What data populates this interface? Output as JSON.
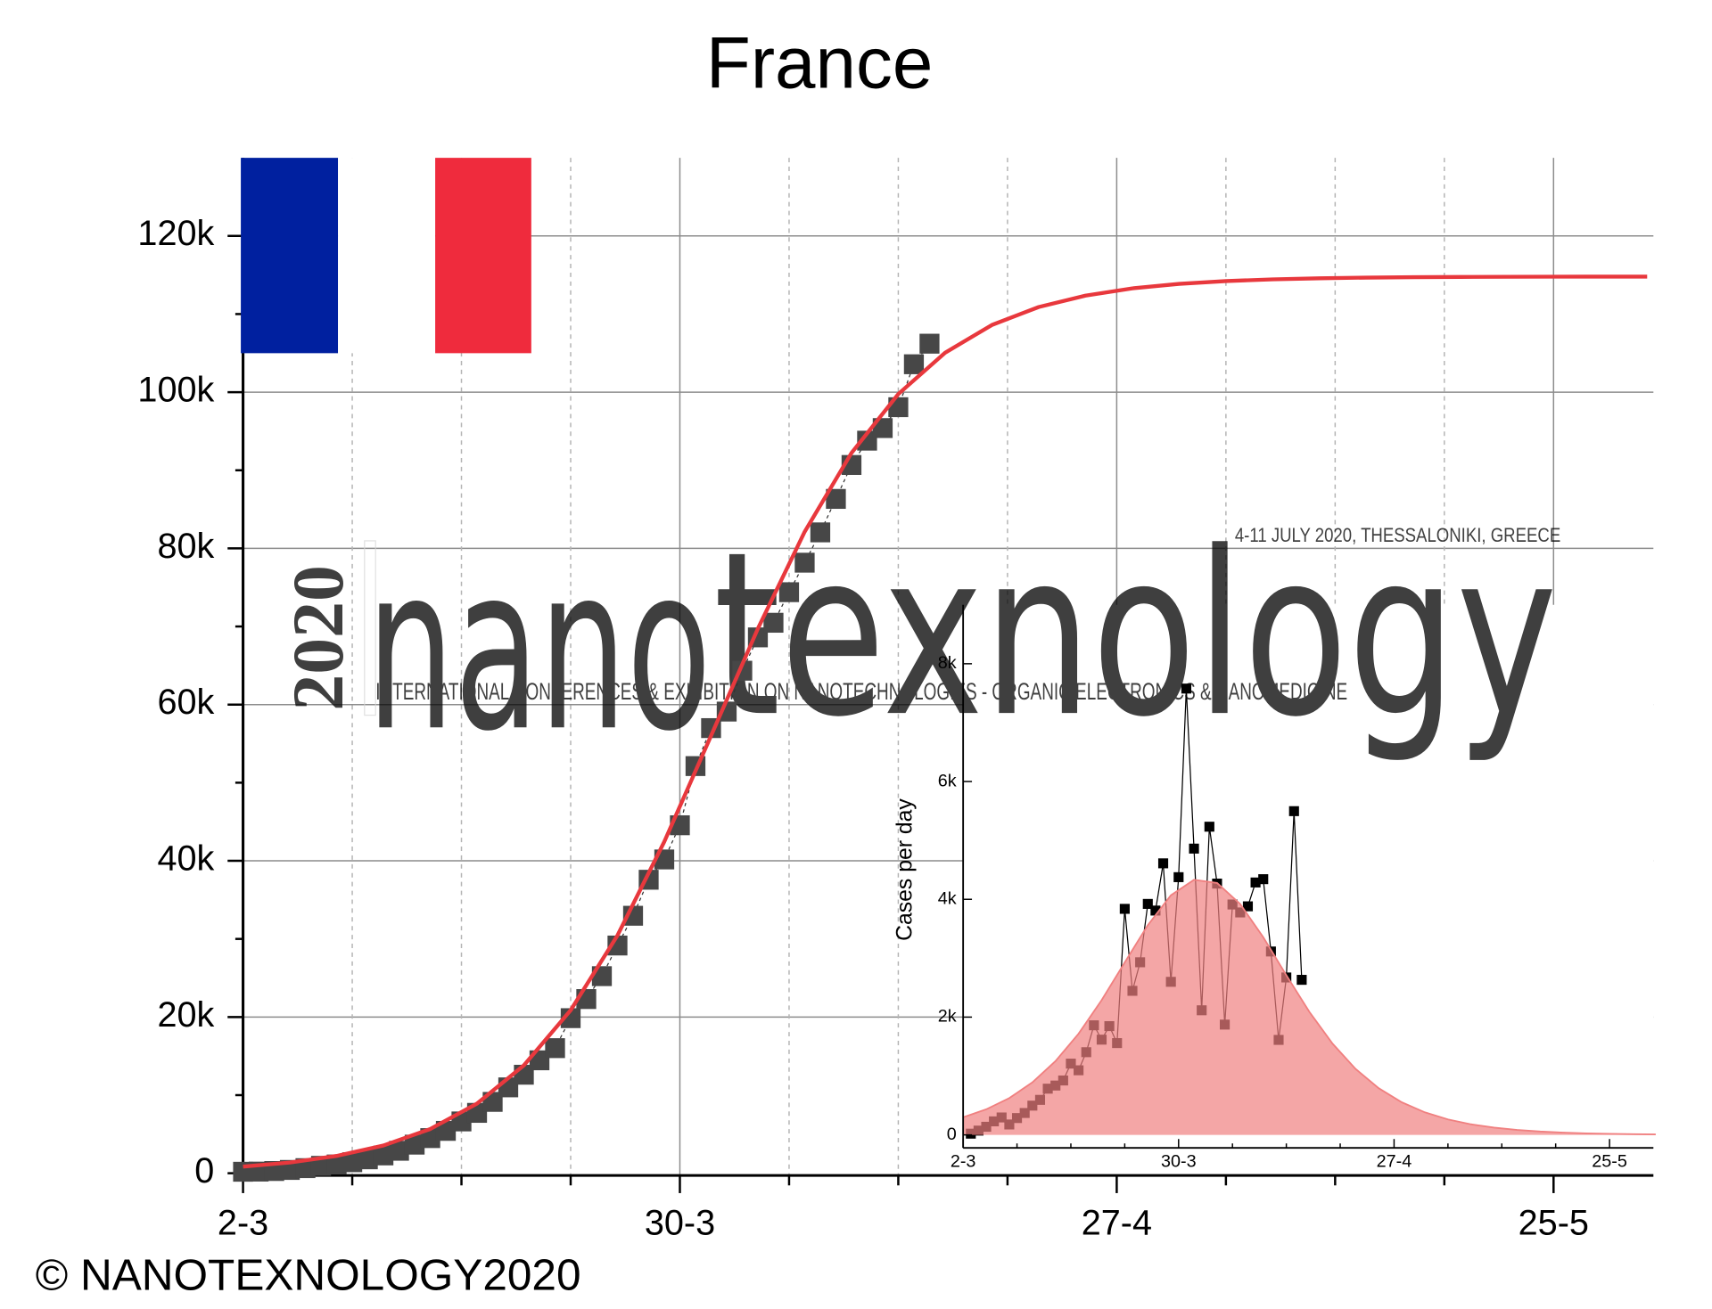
{
  "chart_data": [
    {
      "type": "scatter",
      "title": "France",
      "xlim": [
        0,
        90.4
      ],
      "xticks": [
        {
          "value": 0,
          "label": "2-3"
        },
        {
          "value": 28,
          "label": "30-3"
        },
        {
          "value": 56,
          "label": "27-4"
        },
        {
          "value": 84,
          "label": "25-5"
        }
      ],
      "xminorticks": [
        7,
        14,
        21,
        35,
        42,
        49,
        63,
        70,
        77
      ],
      "ylim": [
        0,
        130000
      ],
      "yticks": [
        0,
        {
          "value": 20000,
          "label": "20k"
        },
        {
          "value": 40000,
          "label": "40k"
        },
        {
          "value": 60000,
          "label": "60k"
        },
        {
          "value": 80000,
          "label": "80k"
        },
        {
          "value": 100000,
          "label": "100k"
        },
        {
          "value": 120000,
          "label": "120k"
        }
      ],
      "yminorticks": [
        10000,
        30000,
        50000,
        70000,
        90000,
        110000
      ],
      "grid": true,
      "series": [
        {
          "type": "scatter",
          "color": "#474747",
          "x": [
            0,
            1,
            2,
            3,
            4,
            5,
            6,
            7,
            8,
            9,
            10,
            11,
            12,
            13,
            14,
            15,
            16,
            17,
            18,
            19,
            20,
            21,
            22,
            23,
            24,
            25,
            26,
            27,
            28,
            29,
            30,
            31,
            32,
            33,
            34,
            35,
            36,
            37,
            38,
            39,
            40,
            41,
            42,
            43,
            44
          ],
          "values": [
            191,
            212,
            285,
            423,
            653,
            949,
            1126,
            1412,
            1784,
            2281,
            2876,
            3661,
            4499,
            5423,
            6633,
            7730,
            9134,
            10995,
            12612,
            14459,
            16018,
            19856,
            22302,
            25233,
            29155,
            32964,
            37575,
            40174,
            44550,
            52128,
            56989,
            59105,
            64338,
            68605,
            70478,
            74390,
            78167,
            82048,
            86334,
            90676,
            93790,
            95403,
            98076,
            103573,
            106206
          ]
        },
        {
          "type": "line",
          "color": "#e8383d",
          "x": [
            0,
            3,
            6,
            9,
            12,
            15,
            18,
            21,
            24,
            27,
            30,
            33,
            36,
            39,
            42,
            45,
            48,
            51,
            54,
            57,
            60,
            63,
            66,
            69,
            72,
            75,
            78,
            81,
            84,
            87,
            90
          ],
          "values": [
            849,
            1375,
            2219,
            3554,
            5660,
            8920,
            13815,
            20873,
            30451,
            42440,
            56010,
            69730,
            82130,
            92215,
            99755,
            105050,
            108600,
            110900,
            112360,
            113290,
            113865,
            114220,
            114444,
            114580,
            114665,
            114717,
            114750,
            114770,
            114785,
            114790,
            114795
          ]
        }
      ]
    },
    {
      "type": "line",
      "ylabel": "Cases per day",
      "xlim": [
        0,
        89.7
      ],
      "xticks": [
        {
          "value": 0,
          "label": "2-3"
        },
        {
          "value": 28,
          "label": "30-3"
        },
        {
          "value": 56,
          "label": "27-4"
        },
        {
          "value": 84,
          "label": "25-5"
        }
      ],
      "xminorticks": [
        7,
        14,
        21,
        35,
        42,
        49,
        63,
        70,
        77
      ],
      "ylim": [
        -220,
        9000
      ],
      "yticks": [
        0,
        {
          "value": 2000,
          "label": "2k"
        },
        {
          "value": 4000,
          "label": "4k"
        },
        {
          "value": 6000,
          "label": "6k"
        },
        {
          "value": 8000,
          "label": "8k"
        }
      ],
      "series": [
        {
          "type": "markers",
          "color": "#000000",
          "x": [
            1,
            2,
            3,
            4,
            5,
            6,
            7,
            8,
            9,
            10,
            11,
            12,
            13,
            14,
            15,
            16,
            17,
            18,
            19,
            20,
            21,
            22,
            23,
            24,
            25,
            26,
            27,
            28,
            29,
            30,
            31,
            32,
            33,
            34,
            35,
            36,
            37,
            38,
            39,
            40,
            41,
            42,
            43,
            44
          ],
          "values": [
            21,
            73,
            138,
            230,
            296,
            177,
            286,
            372,
            497,
            595,
            785,
            838,
            924,
            1210,
            1097,
            1404,
            1861,
            1617,
            1847,
            1559,
            3838,
            2446,
            2931,
            3922,
            3809,
            4611,
            2599,
            4376,
            7578,
            4861,
            2116,
            5233,
            4267,
            1873,
            3912,
            3777,
            3881,
            4286,
            4342,
            3114,
            1613,
            2673,
            5497,
            2633
          ]
        },
        {
          "type": "area",
          "color": "#f08080",
          "x": [
            0,
            3,
            6,
            9,
            12,
            15,
            18,
            21,
            24,
            27,
            30,
            33,
            36,
            39,
            42,
            45,
            48,
            51,
            54,
            57,
            60,
            63,
            66,
            69,
            72,
            75,
            78,
            81,
            84,
            87,
            90
          ],
          "values": [
            299,
            434,
            625,
            892,
            1252,
            1718,
            2288,
            2928,
            3561,
            4069,
            4332,
            4277,
            3921,
            3357,
            2711,
            2088,
            1550,
            1120,
            793,
            554,
            383,
            263,
            180,
            124,
            84,
            57,
            39,
            26,
            18,
            12,
            8
          ]
        }
      ]
    }
  ],
  "watermark": {
    "year": "2020",
    "word_a": "nano",
    "word_b": "texnology",
    "tagline": "INTERNATIONAL CONFERENCES & EXHIBITION ON NANOTECHNOLOGIES - ORGANIC ELECTRONICS & NANOMEDICINE",
    "dates": "4-11 JULY 2020, THESSALONIKI, GREECE"
  },
  "footer": "© NANOTEXNOLOGY2020"
}
